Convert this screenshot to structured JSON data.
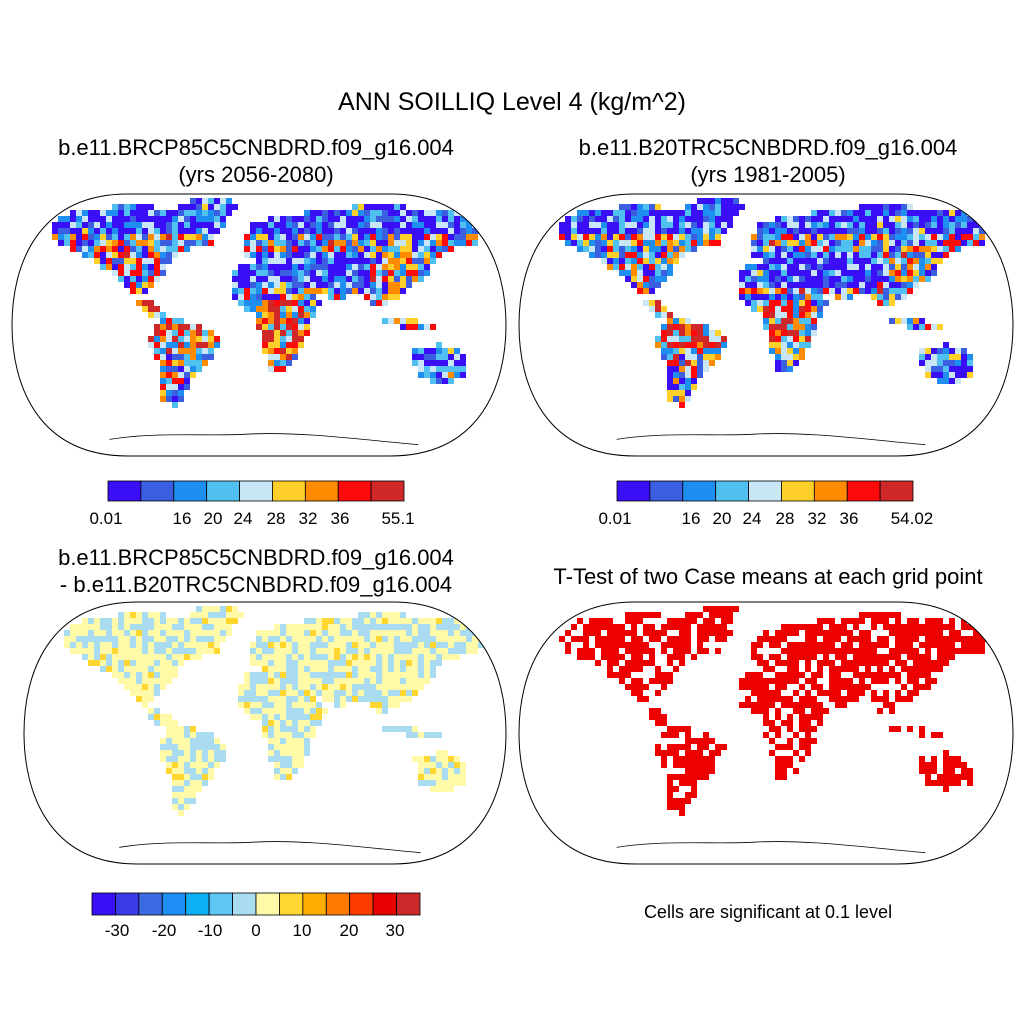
{
  "title": "ANN SOILLIQ Level 4 (kg/m^2)",
  "panels": {
    "case": {
      "title_line1": "b.e11.BRCP85C5CNBDRD.f09_g16.004",
      "title_line2": "(yrs 2056-2080)",
      "colorbar_labels": [
        "0.01",
        "16",
        "20",
        "24",
        "28",
        "32",
        "36",
        "55.1"
      ]
    },
    "control": {
      "title_line1": "b.e11.B20TRC5CNBDRD.f09_g16.004",
      "title_line2": "(yrs 1981-2005)",
      "colorbar_labels": [
        "0.01",
        "16",
        "20",
        "24",
        "28",
        "32",
        "36",
        "54.02"
      ]
    },
    "difference": {
      "title_line1": "b.e11.BRCP85C5CNBDRD.f09_g16.004",
      "title_line2": "- b.e11.B20TRC5CNBDRD.f09_g16.004",
      "colorbar_labels": [
        "-30",
        "-20",
        "-10",
        "0",
        "10",
        "20",
        "30"
      ]
    },
    "ttest": {
      "title": "T-Test of two Case means at each grid point",
      "note": "Cells are significant at 0.1 level",
      "significant_color": "#ee0000"
    }
  },
  "colors": {
    "absolute_scale": [
      "#3a0ff5",
      "#3b5fe0",
      "#1e8ef0",
      "#4fc0f0",
      "#c8e6f5",
      "#ffd02a",
      "#ff8c00",
      "#ff0a0a",
      "#d02828"
    ],
    "difference_scale": [
      "#3a0ff5",
      "#3a3ae6",
      "#3c6ae2",
      "#1e90f5",
      "#0bb0f5",
      "#5ec5f5",
      "#a9dcf0",
      "#fff9a8",
      "#ffd730",
      "#ffad00",
      "#ff7a00",
      "#ff3c00",
      "#e60000",
      "#cc2a2a"
    ],
    "coastline": "#000000"
  }
}
